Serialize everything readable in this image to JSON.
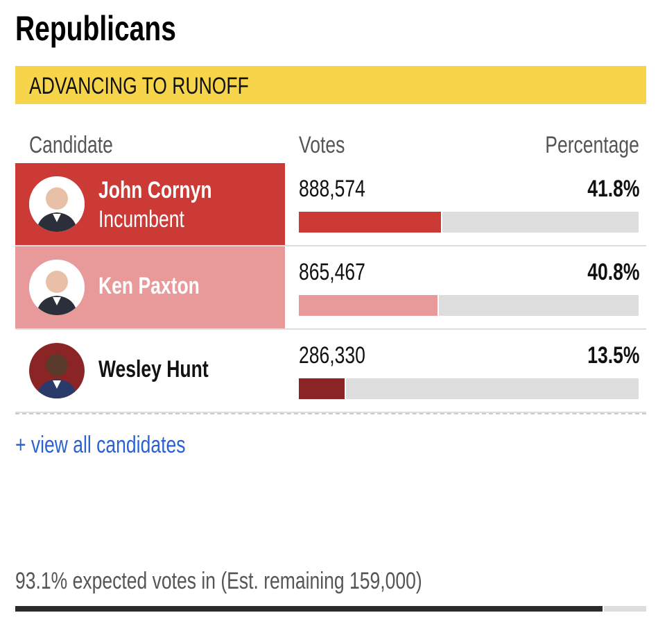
{
  "title": "Republicans",
  "banner": "ADVANCING TO RUNOFF",
  "headers": {
    "candidate": "Candidate",
    "votes": "Votes",
    "percentage": "Percentage"
  },
  "candidates": [
    {
      "name": "John Cornyn",
      "note": "Incumbent",
      "votes": "888,574",
      "percentage": "41.8%",
      "share": 0.418,
      "row_color": "#cc3a35",
      "bar_color": "#cc3a35",
      "name_color": "#ffffff"
    },
    {
      "name": "Ken Paxton",
      "note": "",
      "votes": "865,467",
      "percentage": "40.8%",
      "share": 0.408,
      "row_color": "#e89a9a",
      "bar_color": "#e89a9a",
      "name_color": "#ffffff"
    },
    {
      "name": "Wesley Hunt",
      "note": "",
      "votes": "286,330",
      "percentage": "13.5%",
      "share": 0.135,
      "row_color": "#ffffff",
      "bar_color": "#8b2424",
      "name_color": "#111111"
    }
  ],
  "view_all": "+ view all candidates",
  "footer": {
    "text": "93.1% expected votes in (Est. remaining 159,000)",
    "expected_in": 0.931
  }
}
